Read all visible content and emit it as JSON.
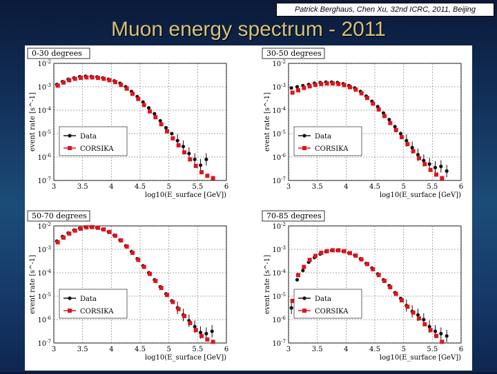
{
  "credit": "Patrick Berghaus, Chen Xu, 32nd ICRC, 2011, Beijing",
  "title": "Muon energy spectrum - 2011",
  "colors": {
    "data": "#111111",
    "corsika": "#e0141c",
    "title": "#d6c07a"
  },
  "chart_data": [
    {
      "type": "scatter",
      "label": "0-30 degrees",
      "xlabel": "log10(E_surface [GeV])",
      "ylabel": "event rate [s^-1]",
      "xlim": [
        3,
        6
      ],
      "ylim_log10": [
        -7,
        -2
      ],
      "xticks": [
        "3",
        "3.5",
        "4",
        "4.5",
        "5",
        "5.5",
        "6"
      ],
      "yticks": [
        "10^-7",
        "10^-6",
        "10^-5",
        "10^-4",
        "10^-3",
        "10^-2"
      ],
      "legend": [
        "Data",
        "CORSIKA"
      ],
      "series": [
        {
          "name": "Data",
          "x": [
            3.05,
            3.15,
            3.25,
            3.35,
            3.45,
            3.55,
            3.65,
            3.75,
            3.85,
            3.95,
            4.05,
            4.15,
            4.25,
            4.35,
            4.45,
            4.55,
            4.65,
            4.75,
            4.85,
            4.95,
            5.05,
            5.15,
            5.25,
            5.35,
            5.45,
            5.55,
            5.65
          ],
          "log10_y": [
            -2.9,
            -2.78,
            -2.68,
            -2.62,
            -2.57,
            -2.55,
            -2.56,
            -2.58,
            -2.62,
            -2.68,
            -2.75,
            -2.85,
            -3.0,
            -3.2,
            -3.42,
            -3.65,
            -3.9,
            -4.15,
            -4.45,
            -4.75,
            -5.0,
            -5.3,
            -5.55,
            -5.85,
            -6.1,
            -6.35,
            -6.1
          ]
        },
        {
          "name": "CORSIKA",
          "x": [
            3.05,
            3.15,
            3.25,
            3.35,
            3.45,
            3.55,
            3.65,
            3.75,
            3.85,
            3.95,
            4.05,
            4.15,
            4.25,
            4.35,
            4.45,
            4.55,
            4.65,
            4.75,
            4.85,
            4.95,
            5.05,
            5.15,
            5.25,
            5.35,
            5.45,
            5.55,
            5.65,
            5.75
          ],
          "log10_y": [
            -2.95,
            -2.82,
            -2.72,
            -2.66,
            -2.62,
            -2.6,
            -2.6,
            -2.62,
            -2.66,
            -2.72,
            -2.8,
            -2.92,
            -3.08,
            -3.3,
            -3.52,
            -3.78,
            -4.05,
            -4.3,
            -4.6,
            -4.9,
            -5.2,
            -5.5,
            -5.8,
            -6.1,
            -6.38,
            -6.65,
            -6.8,
            -6.9
          ]
        }
      ]
    },
    {
      "type": "scatter",
      "label": "30-50 degrees",
      "xlabel": "log10(E_surface [GeV])",
      "ylabel": "event rate [s^-1]",
      "xlim": [
        3,
        6
      ],
      "ylim_log10": [
        -7,
        -2
      ],
      "xticks": [
        "3",
        "3.5",
        "4",
        "4.5",
        "5",
        "5.5",
        "6"
      ],
      "yticks": [
        "10^-7",
        "10^-6",
        "10^-5",
        "10^-4",
        "10^-3",
        "10^-2"
      ],
      "legend": [
        "Data",
        "CORSIKA"
      ],
      "series": [
        {
          "name": "Data",
          "x": [
            3.05,
            3.15,
            3.25,
            3.35,
            3.45,
            3.55,
            3.65,
            3.75,
            3.85,
            3.95,
            4.05,
            4.15,
            4.25,
            4.35,
            4.45,
            4.55,
            4.65,
            4.75,
            4.85,
            4.95,
            5.05,
            5.15,
            5.25,
            5.35,
            5.45,
            5.55,
            5.65,
            5.75
          ],
          "log10_y": [
            -3.05,
            -3.0,
            -2.95,
            -2.9,
            -2.85,
            -2.82,
            -2.8,
            -2.8,
            -2.82,
            -2.87,
            -2.95,
            -3.05,
            -3.2,
            -3.4,
            -3.62,
            -3.85,
            -4.12,
            -4.4,
            -4.7,
            -5.0,
            -5.3,
            -5.6,
            -5.9,
            -6.15,
            -6.3,
            -6.45,
            -6.4,
            -6.6
          ]
        },
        {
          "name": "CORSIKA",
          "x": [
            3.05,
            3.15,
            3.25,
            3.35,
            3.45,
            3.55,
            3.65,
            3.75,
            3.85,
            3.95,
            4.05,
            4.15,
            4.25,
            4.35,
            4.45,
            4.55,
            4.65,
            4.75,
            4.85,
            4.95,
            5.05,
            5.15,
            5.25,
            5.35,
            5.45,
            5.55,
            5.65
          ],
          "log10_y": [
            -3.25,
            -3.15,
            -3.05,
            -2.98,
            -2.92,
            -2.88,
            -2.86,
            -2.86,
            -2.88,
            -2.93,
            -3.02,
            -3.12,
            -3.28,
            -3.48,
            -3.72,
            -3.97,
            -4.25,
            -4.55,
            -4.85,
            -5.15,
            -5.45,
            -5.75,
            -6.05,
            -6.3,
            -6.55,
            -6.75,
            -6.9
          ]
        }
      ]
    },
    {
      "type": "scatter",
      "label": "50-70 degrees",
      "xlabel": "log10(E_surface [GeV])",
      "ylabel": "event rate [s^-1]",
      "xlim": [
        3,
        6
      ],
      "ylim_log10": [
        -7,
        -2
      ],
      "xticks": [
        "3",
        "3.5",
        "4",
        "4.5",
        "5",
        "5.5",
        "6"
      ],
      "yticks": [
        "10^-7",
        "10^-6",
        "10^-5",
        "10^-4",
        "10^-3",
        "10^-2"
      ],
      "legend": [
        "Data",
        "CORSIKA"
      ],
      "series": [
        {
          "name": "Data",
          "x": [
            3.05,
            3.15,
            3.25,
            3.35,
            3.45,
            3.55,
            3.65,
            3.75,
            3.85,
            3.95,
            4.05,
            4.15,
            4.25,
            4.35,
            4.45,
            4.55,
            4.65,
            4.75,
            4.85,
            4.95,
            5.05,
            5.15,
            5.25,
            5.35,
            5.45,
            5.55,
            5.65,
            5.75
          ],
          "log10_y": [
            -2.65,
            -2.45,
            -2.3,
            -2.18,
            -2.1,
            -2.05,
            -2.05,
            -2.08,
            -2.15,
            -2.25,
            -2.4,
            -2.6,
            -2.85,
            -3.1,
            -3.4,
            -3.7,
            -4.0,
            -4.3,
            -4.6,
            -4.9,
            -5.2,
            -5.5,
            -5.8,
            -6.05,
            -6.3,
            -6.55,
            -6.6,
            -6.5
          ]
        },
        {
          "name": "CORSIKA",
          "x": [
            3.05,
            3.15,
            3.25,
            3.35,
            3.45,
            3.55,
            3.65,
            3.75,
            3.85,
            3.95,
            4.05,
            4.15,
            4.25,
            4.35,
            4.45,
            4.55,
            4.65,
            4.75,
            4.85,
            4.95,
            5.05,
            5.15,
            5.25,
            5.35,
            5.45,
            5.55,
            5.65,
            5.75
          ],
          "log10_y": [
            -2.7,
            -2.5,
            -2.33,
            -2.2,
            -2.12,
            -2.06,
            -2.05,
            -2.08,
            -2.15,
            -2.26,
            -2.42,
            -2.62,
            -2.88,
            -3.15,
            -3.45,
            -3.75,
            -4.05,
            -4.35,
            -4.65,
            -4.95,
            -5.25,
            -5.55,
            -5.85,
            -6.15,
            -6.45,
            -6.7,
            -6.85,
            -6.95
          ]
        }
      ]
    },
    {
      "type": "scatter",
      "label": "70-85 degrees",
      "xlabel": "log10(E_surface [GeV])",
      "ylabel": "event rate [s^-1]",
      "xlim": [
        3,
        6
      ],
      "ylim_log10": [
        -7,
        -2
      ],
      "xticks": [
        "3",
        "3.5",
        "4",
        "4.5",
        "5",
        "5.5",
        "6"
      ],
      "yticks": [
        "10^-7",
        "10^-6",
        "10^-5",
        "10^-4",
        "10^-3",
        "10^-2"
      ],
      "legend": [
        "Data",
        "CORSIKA"
      ],
      "series": [
        {
          "name": "Data",
          "x": [
            3.05,
            3.15,
            3.25,
            3.35,
            3.45,
            3.55,
            3.65,
            3.75,
            3.85,
            3.95,
            4.05,
            4.15,
            4.25,
            4.35,
            4.45,
            4.55,
            4.65,
            4.75,
            4.85,
            4.95,
            5.05,
            5.15,
            5.25,
            5.35,
            5.45,
            5.55,
            5.65,
            5.75
          ],
          "log10_y": [
            -5.5,
            -4.3,
            -3.9,
            -3.55,
            -3.35,
            -3.2,
            -3.1,
            -3.05,
            -3.05,
            -3.08,
            -3.15,
            -3.25,
            -3.4,
            -3.6,
            -3.8,
            -4.05,
            -4.3,
            -4.55,
            -4.85,
            -5.1,
            -5.4,
            -5.65,
            -5.8,
            -6.0,
            -6.3,
            -6.5,
            -6.6,
            -6.7
          ]
        },
        {
          "name": "CORSIKA",
          "x": [
            3.05,
            3.15,
            3.25,
            3.35,
            3.45,
            3.55,
            3.65,
            3.75,
            3.85,
            3.95,
            4.05,
            4.15,
            4.25,
            4.35,
            4.45,
            4.55,
            4.65,
            4.75,
            4.85,
            4.95,
            5.05,
            5.15,
            5.25,
            5.35,
            5.45,
            5.55,
            5.65,
            5.75
          ],
          "log10_y": [
            -5.2,
            -4.1,
            -3.75,
            -3.45,
            -3.28,
            -3.15,
            -3.08,
            -3.04,
            -3.04,
            -3.08,
            -3.16,
            -3.27,
            -3.43,
            -3.63,
            -3.85,
            -4.1,
            -4.35,
            -4.62,
            -4.9,
            -5.18,
            -5.45,
            -5.7,
            -5.95,
            -6.2,
            -6.45,
            -6.7,
            -6.95,
            -7.1
          ]
        }
      ]
    }
  ]
}
